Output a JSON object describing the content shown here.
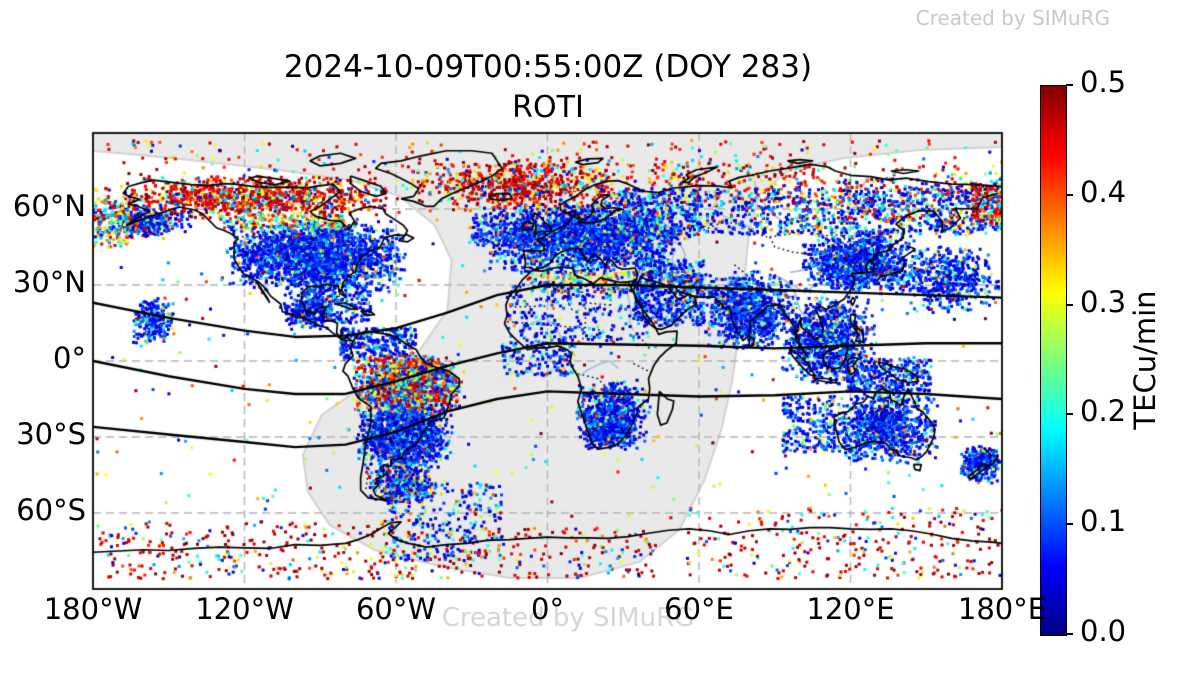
{
  "title": {
    "line1": "2024-10-09T00:55:00Z (DOY 283)",
    "line2": "ROTI"
  },
  "watermarks": {
    "top_right": "Created by SIMuRG",
    "bottom_center": "Created by SIMuRG"
  },
  "colorbar": {
    "label": "TECu/min",
    "tick_labels": [
      "0.0",
      "0.1",
      "0.2",
      "0.3",
      "0.4",
      "0.5"
    ],
    "tick_values": [
      0,
      0.1,
      0.2,
      0.3,
      0.4,
      0.5
    ],
    "vmin": 0.0,
    "vmax": 0.5,
    "colormap": "jet"
  },
  "axes": {
    "x_tick_labels": [
      "180°W",
      "120°W",
      "60°W",
      "0°",
      "60°E",
      "120°E",
      "180°E"
    ],
    "x_tick_lons": [
      -180,
      -120,
      -60,
      0,
      60,
      120,
      180
    ],
    "y_tick_labels": [
      "60°N",
      "30°N",
      "0°",
      "30°S",
      "60°S"
    ],
    "y_tick_lats": [
      60,
      30,
      0,
      -30,
      -60
    ]
  },
  "chart_data": {
    "type": "scatter",
    "title": "2024-10-09T00:55:00Z (DOY 283) ROTI",
    "units": "TECu/min",
    "projection": "equirectangular",
    "lon_range": [
      -180,
      180
    ],
    "lat_range": [
      -90,
      90
    ],
    "colormap": "jet",
    "vmin": 0.0,
    "vmax": 0.5,
    "marker": "square",
    "marker_size_px": 3,
    "gridlines": {
      "lons": [
        -120,
        -60,
        0,
        60,
        120
      ],
      "lats": [
        -60,
        -30,
        0,
        30,
        60
      ],
      "style": "dashed"
    },
    "night_shade_polygon": [
      [
        -180,
        82.9
      ],
      [
        -165.4,
        81.7
      ],
      [
        -137.7,
        78.9
      ],
      [
        -106.0,
        75.4
      ],
      [
        -78.3,
        71.4
      ],
      [
        -58.6,
        65.1
      ],
      [
        -44.7,
        53.7
      ],
      [
        -38.0,
        39.9
      ],
      [
        -39.6,
        20.1
      ],
      [
        -50.6,
        4.3
      ],
      [
        -72.4,
        -9.5
      ],
      [
        -89.4,
        -21.3
      ],
      [
        -96.9,
        -37.1
      ],
      [
        -94.9,
        -51.7
      ],
      [
        -86.2,
        -64.7
      ],
      [
        -68.4,
        -74.6
      ],
      [
        -42.7,
        -80.9
      ],
      [
        -15.0,
        -85.7
      ],
      [
        12.7,
        -85.7
      ],
      [
        36.4,
        -79.3
      ],
      [
        52.2,
        -66.7
      ],
      [
        62.1,
        -47.0
      ],
      [
        68.8,
        -27.2
      ],
      [
        73.2,
        -7.5
      ],
      [
        75.9,
        12.2
      ],
      [
        77.9,
        32.0
      ],
      [
        79.9,
        51.7
      ],
      [
        83.9,
        65.5
      ],
      [
        95.7,
        75.4
      ],
      [
        117.5,
        80.1
      ],
      [
        147.1,
        83.3
      ],
      [
        180,
        84.5
      ]
    ],
    "geomagnetic_lines": [
      [
        [
          -180,
          23
        ],
        [
          -150,
          17
        ],
        [
          -120,
          12
        ],
        [
          -100,
          9.5
        ],
        [
          -80,
          10
        ],
        [
          -60,
          13
        ],
        [
          -40,
          19
        ],
        [
          -20,
          26
        ],
        [
          0,
          30
        ],
        [
          30,
          30
        ],
        [
          60,
          29
        ],
        [
          90,
          28
        ],
        [
          120,
          27
        ],
        [
          150,
          26
        ],
        [
          180,
          25
        ]
      ],
      [
        [
          -180,
          0
        ],
        [
          -150,
          -6
        ],
        [
          -120,
          -11
        ],
        [
          -100,
          -13
        ],
        [
          -80,
          -13
        ],
        [
          -60,
          -8
        ],
        [
          -40,
          -2
        ],
        [
          -20,
          3
        ],
        [
          0,
          7
        ],
        [
          30,
          6.5
        ],
        [
          60,
          6
        ],
        [
          90,
          5
        ],
        [
          120,
          6
        ],
        [
          150,
          7
        ],
        [
          180,
          7
        ]
      ],
      [
        [
          -180,
          -26
        ],
        [
          -150,
          -29
        ],
        [
          -120,
          -32
        ],
        [
          -100,
          -34
        ],
        [
          -80,
          -33
        ],
        [
          -60,
          -28
        ],
        [
          -40,
          -20
        ],
        [
          -20,
          -15
        ],
        [
          0,
          -12
        ],
        [
          30,
          -13
        ],
        [
          60,
          -14
        ],
        [
          90,
          -13.5
        ],
        [
          120,
          -12
        ],
        [
          150,
          -13
        ],
        [
          180,
          -15
        ]
      ]
    ],
    "roti_palettes": {
      "aurora": [
        [
          0.6,
          0.42,
          0.5
        ],
        [
          0.18,
          0.3,
          0.42
        ],
        [
          0.12,
          0.15,
          0.3
        ],
        [
          0.1,
          0.03,
          0.15
        ]
      ],
      "quiet": [
        [
          0.55,
          0.02,
          0.08
        ],
        [
          0.3,
          0.08,
          0.14
        ],
        [
          0.1,
          0.14,
          0.25
        ],
        [
          0.04,
          0.25,
          0.4
        ],
        [
          0.01,
          0.4,
          0.5
        ]
      ],
      "quietMix": [
        [
          0.45,
          0.02,
          0.08
        ],
        [
          0.25,
          0.08,
          0.15
        ],
        [
          0.15,
          0.15,
          0.28
        ],
        [
          0.1,
          0.28,
          0.42
        ],
        [
          0.05,
          0.42,
          0.5
        ]
      ],
      "anomaly": [
        [
          0.3,
          0.42,
          0.5
        ],
        [
          0.2,
          0.28,
          0.42
        ],
        [
          0.2,
          0.15,
          0.28
        ],
        [
          0.3,
          0.03,
          0.15
        ]
      ],
      "transition": [
        [
          0.35,
          0.15,
          0.28
        ],
        [
          0.3,
          0.28,
          0.4
        ],
        [
          0.2,
          0.4,
          0.5
        ],
        [
          0.15,
          0.05,
          0.15
        ]
      ],
      "polarRed": [
        [
          0.55,
          0.44,
          0.5
        ],
        [
          0.15,
          0.3,
          0.44
        ],
        [
          0.15,
          0.15,
          0.3
        ],
        [
          0.15,
          0.03,
          0.15
        ]
      ],
      "mixRed": [
        [
          0.5,
          0.4,
          0.5
        ],
        [
          0.5,
          0.02,
          0.5
        ]
      ],
      "eastAur": [
        [
          0.45,
          0.4,
          0.5
        ],
        [
          0.35,
          0.02,
          0.1
        ],
        [
          0.2,
          0.1,
          0.3
        ]
      ],
      "any": [
        [
          1.0,
          0.02,
          0.5
        ]
      ]
    },
    "scatter_clusters": [
      {
        "id": "auroral-na",
        "lon": [
          -178,
          -55
        ],
        "lat": [
          56,
          73
        ],
        "n": 1050,
        "soft": 1,
        "pal": "aurora"
      },
      {
        "id": "auroral-atlantic",
        "lon": [
          -55,
          38
        ],
        "lat": [
          58,
          80
        ],
        "n": 800,
        "soft": 1,
        "pal": "aurora"
      },
      {
        "id": "auroral-polar-sprinkle",
        "lon": [
          -180,
          180
        ],
        "lat": [
          70,
          87
        ],
        "n": 280,
        "soft": 0,
        "pal": "mixRed"
      },
      {
        "id": "auroral-russia-east",
        "lon": [
          115,
          180
        ],
        "lat": [
          55,
          72
        ],
        "n": 280,
        "soft": 0,
        "pal": "eastAur"
      },
      {
        "id": "auroral-russia-mid",
        "lon": [
          40,
          115
        ],
        "lat": [
          62,
          78
        ],
        "n": 200,
        "soft": 0,
        "pal": "mixRed"
      },
      {
        "id": "alaska",
        "lon": [
          -180,
          -140
        ],
        "lat": [
          48,
          62
        ],
        "n": 400,
        "soft": 1,
        "pal": "quietMix"
      },
      {
        "id": "left-edge-mixed",
        "lon": [
          -180,
          -166
        ],
        "lat": [
          45,
          64
        ],
        "n": 150,
        "soft": 0,
        "pal": "transition"
      },
      {
        "id": "north-america",
        "lon": [
          -128,
          -55
        ],
        "lat": [
          27,
          56
        ],
        "n": 2300,
        "soft": 1,
        "pal": "quiet"
      },
      {
        "id": "na-transition-band",
        "lon": [
          -130,
          -80
        ],
        "lat": [
          52,
          58
        ],
        "n": 200,
        "soft": 0,
        "pal": "transition"
      },
      {
        "id": "hawaii",
        "lon": [
          -165,
          -147
        ],
        "lat": [
          5,
          26
        ],
        "n": 220,
        "soft": 1,
        "pal": "quiet"
      },
      {
        "id": "mexico",
        "lon": [
          -106,
          -84
        ],
        "lat": [
          12,
          28
        ],
        "n": 260,
        "soft": 1,
        "pal": "quiet"
      },
      {
        "id": "caribbean",
        "lon": [
          -82,
          -52
        ],
        "lat": [
          0,
          13
        ],
        "n": 300,
        "soft": 0,
        "pal": "quiet"
      },
      {
        "id": "sa-anomaly",
        "lon": [
          -78,
          -33
        ],
        "lat": [
          -23,
          3
        ],
        "n": 1700,
        "soft": 1,
        "pal": "anomaly"
      },
      {
        "id": "sa-south",
        "lon": [
          -76,
          -37
        ],
        "lat": [
          -43,
          -17
        ],
        "n": 1300,
        "soft": 1,
        "pal": "quiet"
      },
      {
        "id": "sa-tail",
        "lon": [
          -71,
          -44
        ],
        "lat": [
          -57,
          -39
        ],
        "n": 450,
        "soft": 1,
        "pal": "quietMix"
      },
      {
        "id": "s-atlantic-trail",
        "lon": [
          -63,
          -18
        ],
        "lat": [
          -79,
          -48
        ],
        "n": 300,
        "soft": 0,
        "pal": "quietMix"
      },
      {
        "id": "europe",
        "lon": [
          -26,
          55
        ],
        "lat": [
          34,
          63
        ],
        "n": 2100,
        "soft": 1,
        "pal": "quiet"
      },
      {
        "id": "eu-transition",
        "lon": [
          -8,
          62
        ],
        "lat": [
          27,
          35
        ],
        "n": 320,
        "soft": 0,
        "pal": "transition"
      },
      {
        "id": "n-africa",
        "lon": [
          -16,
          40
        ],
        "lat": [
          8,
          31
        ],
        "n": 260,
        "soft": 0,
        "pal": "quiet"
      },
      {
        "id": "w-africa",
        "lon": [
          -18,
          10
        ],
        "lat": [
          -6,
          10
        ],
        "n": 160,
        "soft": 0,
        "pal": "quiet"
      },
      {
        "id": "s-africa",
        "lon": [
          10,
          41
        ],
        "lat": [
          -36,
          -7
        ],
        "n": 600,
        "soft": 1,
        "pal": "quiet"
      },
      {
        "id": "s-africa-2",
        "lon": [
          14,
          34
        ],
        "lat": [
          -35,
          -21
        ],
        "n": 320,
        "soft": 1,
        "pal": "quiet"
      },
      {
        "id": "mideast",
        "lon": [
          34,
          62
        ],
        "lat": [
          14,
          40
        ],
        "n": 480,
        "soft": 0,
        "pal": "quiet"
      },
      {
        "id": "india",
        "lon": [
          60,
          100
        ],
        "lat": [
          4,
          36
        ],
        "n": 950,
        "soft": 1,
        "pal": "quiet"
      },
      {
        "id": "se-asia",
        "lon": [
          93,
          130
        ],
        "lat": [
          -10,
          26
        ],
        "n": 950,
        "soft": 1,
        "pal": "quiet"
      },
      {
        "id": "east-asia",
        "lon": [
          100,
          146
        ],
        "lat": [
          26,
          52
        ],
        "n": 1150,
        "soft": 1,
        "pal": "quiet"
      },
      {
        "id": "siberia",
        "lon": [
          58,
          180
        ],
        "lat": [
          50,
          68
        ],
        "n": 850,
        "soft": 0,
        "pal": "quietMix"
      },
      {
        "id": "russia-west",
        "lon": [
          28,
          60
        ],
        "lat": [
          48,
          68
        ],
        "n": 420,
        "soft": 0,
        "pal": "quietMix"
      },
      {
        "id": "japan-pacific",
        "lon": [
          138,
          180
        ],
        "lat": [
          18,
          46
        ],
        "n": 520,
        "soft": 1,
        "pal": "quiet"
      },
      {
        "id": "australia",
        "lon": [
          112,
          156
        ],
        "lat": [
          -41,
          -11
        ],
        "n": 950,
        "soft": 1,
        "pal": "quiet"
      },
      {
        "id": "indonesia-png",
        "lon": [
          118,
          152
        ],
        "lat": [
          -12,
          1
        ],
        "n": 320,
        "soft": 0,
        "pal": "quiet"
      },
      {
        "id": "new-zealand",
        "lon": [
          163,
          180
        ],
        "lat": [
          -49,
          -33
        ],
        "n": 280,
        "soft": 1,
        "pal": "quiet"
      },
      {
        "id": "aus-west-ocean",
        "lon": [
          93,
          114
        ],
        "lat": [
          -36,
          -14
        ],
        "n": 220,
        "soft": 0,
        "pal": "quiet"
      },
      {
        "id": "north-atlantic",
        "lon": [
          -30,
          -5
        ],
        "lat": [
          45,
          58
        ],
        "n": 200,
        "soft": 0,
        "pal": "quiet"
      },
      {
        "id": "na-southeast",
        "lon": [
          -95,
          -70
        ],
        "lat": [
          15,
          30
        ],
        "n": 250,
        "soft": 0,
        "pal": "quiet"
      },
      {
        "id": "antarctic-west",
        "lon": [
          -178,
          -58
        ],
        "lat": [
          -86,
          -63
        ],
        "n": 280,
        "soft": 0,
        "pal": "polarRed"
      },
      {
        "id": "antarctic-mid",
        "lon": [
          -58,
          45
        ],
        "lat": [
          -86,
          -66
        ],
        "n": 200,
        "soft": 0,
        "pal": "polarRed"
      },
      {
        "id": "antarctic-east",
        "lon": [
          55,
          180
        ],
        "lat": [
          -86,
          -58
        ],
        "n": 280,
        "soft": 0,
        "pal": "polarRed"
      },
      {
        "id": "right-edge-aurora",
        "lon": [
          168,
          180
        ],
        "lat": [
          55,
          70
        ],
        "n": 120,
        "soft": 0,
        "pal": "aurora"
      },
      {
        "id": "sparse-global",
        "lon": [
          -180,
          180
        ],
        "lat": [
          -62,
          76
        ],
        "n": 380,
        "soft": 0,
        "pal": "any"
      }
    ]
  }
}
